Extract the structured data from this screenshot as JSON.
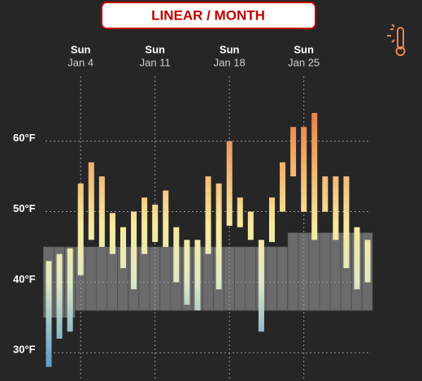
{
  "chart_data": {
    "type": "range_bar",
    "title": "LINEAR / MONTH",
    "categories": [
      null,
      null,
      null,
      "Jan 4",
      null,
      null,
      null,
      null,
      null,
      null,
      "Jan 11",
      null,
      null,
      null,
      null,
      null,
      null,
      "Jan 18",
      null,
      null,
      null,
      null,
      null,
      null,
      "Jan 25",
      null,
      null,
      null,
      null,
      null,
      null
    ],
    "category_weekdays": [
      null,
      null,
      null,
      "Sun",
      null,
      null,
      null,
      null,
      null,
      null,
      "Sun",
      null,
      null,
      null,
      null,
      null,
      null,
      "Sun",
      null,
      null,
      null,
      null,
      null,
      null,
      "Sun",
      null,
      null,
      null,
      null,
      null,
      null
    ],
    "lows": [
      28,
      32,
      33,
      41,
      46,
      45,
      44,
      42,
      39,
      44,
      45.7,
      45,
      40,
      36.8,
      36,
      44,
      39,
      48,
      47.8,
      46,
      33,
      45.7,
      50,
      55,
      50,
      46,
      50,
      46,
      42,
      39,
      40
    ],
    "highs": [
      43,
      44,
      44.8,
      54,
      57,
      55,
      49.8,
      47.8,
      50,
      52,
      51,
      53,
      47.8,
      46,
      46,
      55,
      54,
      60,
      52,
      50,
      46,
      52,
      57,
      62,
      62,
      64,
      55,
      55,
      55,
      47.8,
      46
    ],
    "normal_lows": [
      35,
      35,
      35,
      36,
      36,
      36,
      36,
      36,
      36,
      36,
      36,
      36,
      36,
      36,
      36,
      36,
      36,
      36,
      36,
      36,
      36,
      36,
      36,
      36,
      36,
      36,
      36,
      36,
      36,
      36,
      36
    ],
    "normal_highs": [
      45,
      45,
      45,
      45,
      45,
      45,
      45,
      45,
      45,
      45,
      45,
      45,
      45,
      45,
      45,
      45,
      45,
      45,
      45,
      45,
      45,
      45,
      45,
      47,
      47,
      47,
      47,
      47,
      47,
      47,
      47
    ],
    "normal_color": "#6b6b6b",
    "color_scale": [
      {
        "value": 28,
        "color": "#5a9cc8"
      },
      {
        "value": 40,
        "color": "#dfe9c6"
      },
      {
        "value": 48,
        "color": "#f7ea9e"
      },
      {
        "value": 58,
        "color": "#f2a765"
      },
      {
        "value": 65,
        "color": "#e8794a"
      }
    ],
    "ylim": [
      26,
      80
    ],
    "yticks": [
      {
        "value": 30,
        "label": "30°F"
      },
      {
        "value": 40,
        "label": "40°F"
      },
      {
        "value": 50,
        "label": "50°F"
      },
      {
        "value": 60,
        "label": "60°F"
      }
    ],
    "grid": true
  }
}
